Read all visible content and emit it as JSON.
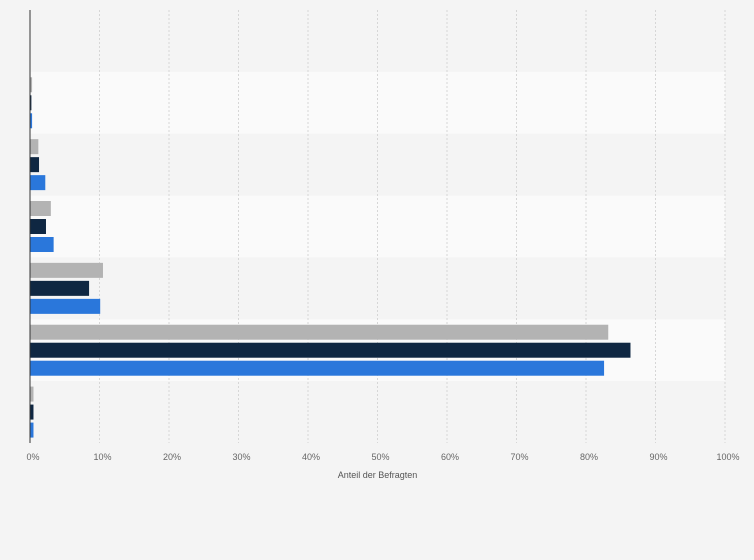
{
  "chart_data": {
    "type": "bar",
    "orientation": "horizontal",
    "title": "",
    "xlabel": "Anteil der Befragten",
    "ylabel": "",
    "xlim": [
      0,
      100
    ],
    "x_tick_labels": [
      "0%",
      "10%",
      "20%",
      "30%",
      "40%",
      "50%",
      "60%",
      "70%",
      "80%",
      "90%",
      "100%"
    ],
    "grid": true,
    "legend": "none",
    "categories": [
      "",
      "",
      "",
      "",
      "",
      "",
      ""
    ],
    "series": [
      {
        "color": "#b3b3b3",
        "values": [
          0.0,
          0.3,
          1.2,
          3.0,
          10.5,
          83.2,
          0.5
        ]
      },
      {
        "color": "#0f2742",
        "values": [
          0.0,
          0.2,
          1.3,
          2.3,
          8.5,
          86.4,
          0.5
        ]
      },
      {
        "color": "#2a77db",
        "values": [
          0.0,
          0.3,
          2.2,
          3.4,
          10.1,
          82.6,
          0.5
        ]
      }
    ]
  }
}
